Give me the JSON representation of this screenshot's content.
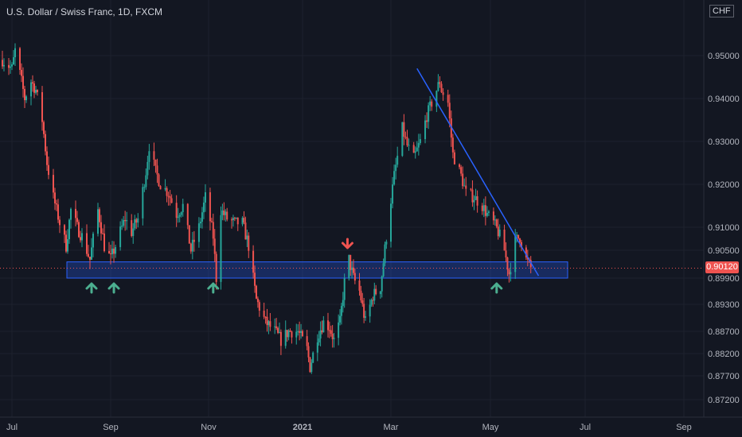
{
  "header": {
    "title": "U.S. Dollar / Swiss Franc, 1D, FXCM",
    "currency": "CHF"
  },
  "colors": {
    "background": "#131722",
    "up": "#26a69a",
    "down": "#ef5350",
    "support_zone": "#2962ff",
    "trendline": "#2962ff",
    "arrow_up": "#4caf90",
    "arrow_down": "#ef5350",
    "axis_text": "#b2b5be",
    "grid": "#1e222d"
  },
  "chart_data": {
    "type": "candlestick",
    "symbol": "USDCHF",
    "interval": "1D",
    "source": "FXCM",
    "x_ticks": [
      "Jul",
      "Sep",
      "Nov",
      "2021",
      "Mar",
      "May",
      "Jul",
      "Sep"
    ],
    "y_ticks": [
      "0.95000",
      "0.94000",
      "0.93000",
      "0.92000",
      "0.91000",
      "0.90500",
      "0.89900",
      "0.89300",
      "0.88700",
      "0.88200",
      "0.87700",
      "0.87200"
    ],
    "current_price": "0.90120",
    "support_zone": {
      "from": 0.899,
      "to": 0.9025
    },
    "trendline": {
      "from": {
        "x": "2021-03-17",
        "y": 0.947
      },
      "to": {
        "x": "2021-06-01",
        "y": 0.8995
      }
    },
    "markers": [
      {
        "direction": "up",
        "x": "2020-08-20"
      },
      {
        "direction": "up",
        "x": "2020-09-03"
      },
      {
        "direction": "up",
        "x": "2020-11-04"
      },
      {
        "direction": "down",
        "x": "2021-01-31"
      },
      {
        "direction": "up",
        "x": "2021-05-05"
      }
    ],
    "path": [
      [
        "2020-06-25",
        0.949
      ],
      [
        "2020-07-01",
        0.947
      ],
      [
        "2020-07-03",
        0.951
      ],
      [
        "2020-07-07",
        0.944
      ],
      [
        "2020-07-09",
        0.94
      ],
      [
        "2020-07-13",
        0.944
      ],
      [
        "2020-07-16",
        0.942
      ],
      [
        "2020-07-20",
        0.935
      ],
      [
        "2020-07-23",
        0.925
      ],
      [
        "2020-07-27",
        0.917
      ],
      [
        "2020-07-31",
        0.911
      ],
      [
        "2020-08-04",
        0.906
      ],
      [
        "2020-08-07",
        0.914
      ],
      [
        "2020-08-11",
        0.91
      ],
      [
        "2020-08-14",
        0.908
      ],
      [
        "2020-08-19",
        0.903
      ],
      [
        "2020-08-24",
        0.914
      ],
      [
        "2020-08-28",
        0.906
      ],
      [
        "2020-09-01",
        0.903
      ],
      [
        "2020-09-04",
        0.906
      ],
      [
        "2020-09-10",
        0.912
      ],
      [
        "2020-09-14",
        0.909
      ],
      [
        "2020-09-18",
        0.912
      ],
      [
        "2020-09-23",
        0.923
      ],
      [
        "2020-09-25",
        0.929
      ],
      [
        "2020-09-29",
        0.923
      ],
      [
        "2020-10-02",
        0.92
      ],
      [
        "2020-10-07",
        0.918
      ],
      [
        "2020-10-12",
        0.913
      ],
      [
        "2020-10-16",
        0.915
      ],
      [
        "2020-10-21",
        0.905
      ],
      [
        "2020-10-26",
        0.91
      ],
      [
        "2020-10-30",
        0.917
      ],
      [
        "2020-11-04",
        0.908
      ],
      [
        "2020-11-06",
        0.899
      ],
      [
        "2020-11-09",
        0.914
      ],
      [
        "2020-11-13",
        0.912
      ],
      [
        "2020-11-18",
        0.911
      ],
      [
        "2020-11-23",
        0.911
      ],
      [
        "2020-11-27",
        0.906
      ],
      [
        "2020-12-02",
        0.894
      ],
      [
        "2020-12-08",
        0.889
      ],
      [
        "2020-12-14",
        0.887
      ],
      [
        "2020-12-18",
        0.885
      ],
      [
        "2020-12-23",
        0.887
      ],
      [
        "2020-12-29",
        0.887
      ],
      [
        "2021-01-04",
        0.883
      ],
      [
        "2021-01-06",
        0.879
      ],
      [
        "2021-01-11",
        0.886
      ],
      [
        "2021-01-15",
        0.889
      ],
      [
        "2021-01-19",
        0.888
      ],
      [
        "2021-01-22",
        0.885
      ],
      [
        "2021-01-26",
        0.889
      ],
      [
        "2021-01-29",
        0.898
      ],
      [
        "2021-02-01",
        0.903
      ],
      [
        "2021-02-04",
        0.899
      ],
      [
        "2021-02-08",
        0.896
      ],
      [
        "2021-02-12",
        0.889
      ],
      [
        "2021-02-17",
        0.895
      ],
      [
        "2021-02-22",
        0.897
      ],
      [
        "2021-02-26",
        0.908
      ],
      [
        "2021-03-03",
        0.922
      ],
      [
        "2021-03-08",
        0.933
      ],
      [
        "2021-03-11",
        0.929
      ],
      [
        "2021-03-15",
        0.926
      ],
      [
        "2021-03-19",
        0.93
      ],
      [
        "2021-03-23",
        0.936
      ],
      [
        "2021-03-26",
        0.939
      ],
      [
        "2021-03-31",
        0.944
      ],
      [
        "2021-04-01",
        0.942
      ],
      [
        "2021-04-05",
        0.939
      ],
      [
        "2021-04-08",
        0.927
      ],
      [
        "2021-04-13",
        0.922
      ],
      [
        "2021-04-16",
        0.918
      ],
      [
        "2021-04-21",
        0.917
      ],
      [
        "2021-04-26",
        0.915
      ],
      [
        "2021-04-29",
        0.913
      ],
      [
        "2021-05-03",
        0.911
      ],
      [
        "2021-05-06",
        0.909
      ],
      [
        "2021-05-10",
        0.905
      ],
      [
        "2021-05-13",
        0.9
      ],
      [
        "2021-05-17",
        0.907
      ],
      [
        "2021-05-20",
        0.908
      ],
      [
        "2021-05-24",
        0.903
      ],
      [
        "2021-05-27",
        0.9012
      ]
    ]
  }
}
